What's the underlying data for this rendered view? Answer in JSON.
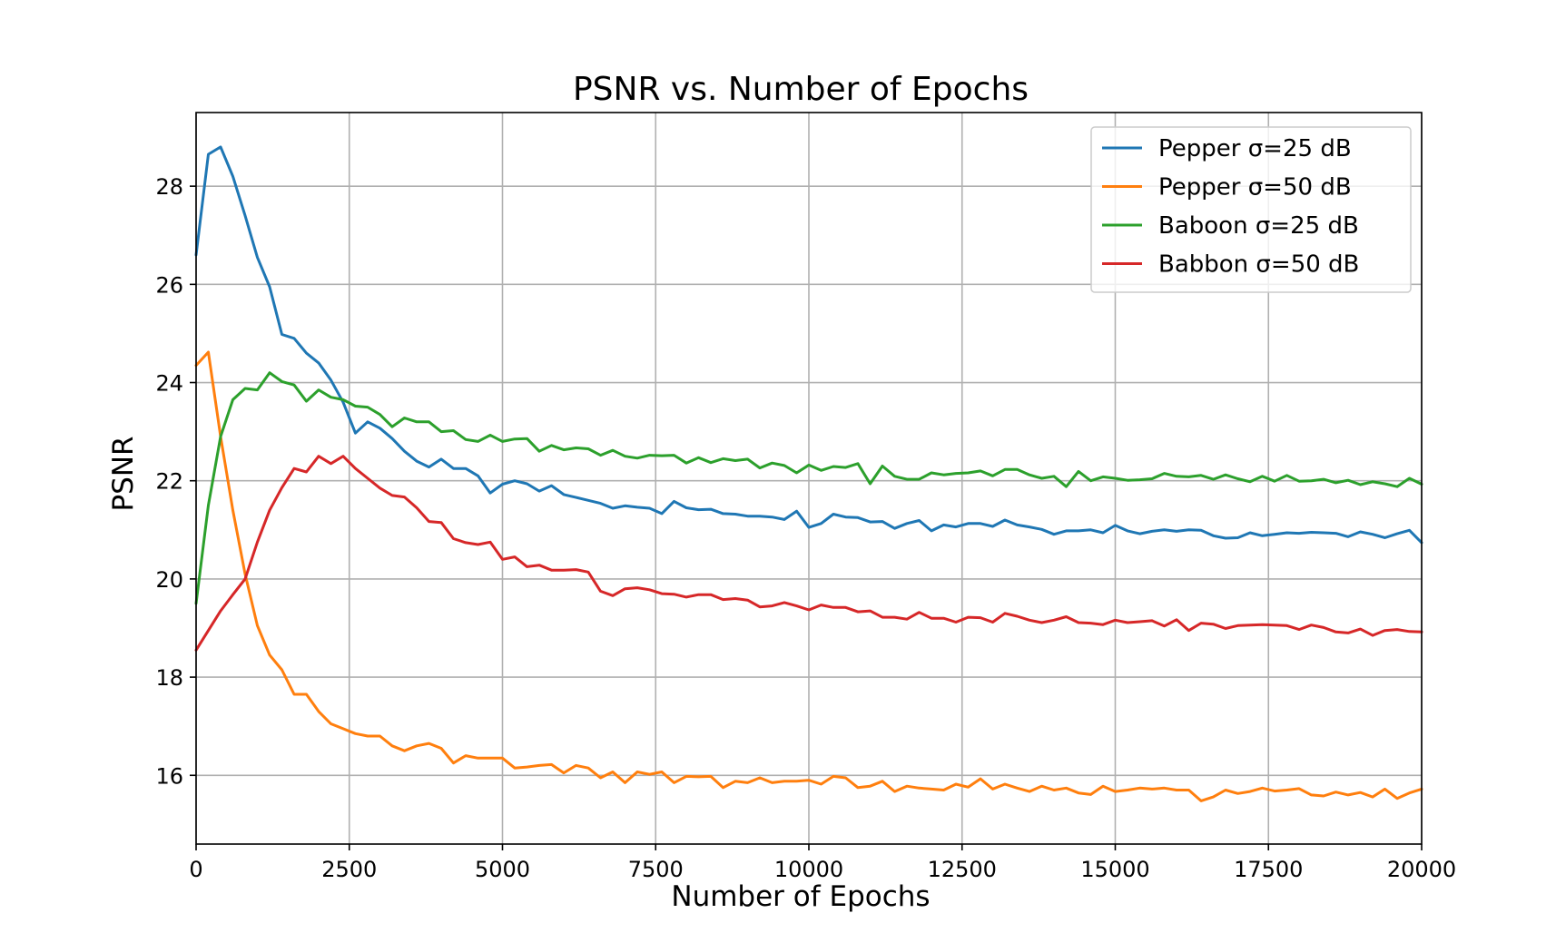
{
  "chart_data": {
    "type": "line",
    "title": "PSNR vs. Number of Epochs",
    "xlabel": "Number of Epochs",
    "ylabel": "PSNR",
    "xlim": [
      0,
      20000
    ],
    "ylim": [
      14.6,
      29.5
    ],
    "grid": true,
    "legend_position": "top-right",
    "x_ticks": [
      0,
      2500,
      5000,
      7500,
      10000,
      12500,
      15000,
      17500,
      20000
    ],
    "x_tick_labels": [
      "0",
      "2500",
      "5000",
      "7500",
      "10000",
      "12500",
      "15000",
      "17500",
      "20000"
    ],
    "y_ticks": [
      16,
      18,
      20,
      22,
      24,
      26,
      28
    ],
    "y_tick_labels": [
      "16",
      "18",
      "20",
      "22",
      "24",
      "26",
      "28"
    ],
    "x": [
      0,
      200,
      400,
      600,
      800,
      1000,
      1200,
      1400,
      1600,
      1800,
      2000,
      2200,
      2400,
      2600,
      2800,
      3000,
      3200,
      3400,
      3600,
      3800,
      4000,
      4200,
      4400,
      4600,
      4800,
      5000,
      5200,
      5400,
      5600,
      5800,
      6000,
      6200,
      6400,
      6600,
      6800,
      7000,
      7200,
      7400,
      7600,
      7800,
      8000,
      8200,
      8400,
      8600,
      8800,
      9000,
      9200,
      9400,
      9600,
      9800,
      10000,
      10200,
      10400,
      10600,
      10800,
      11000,
      11200,
      11400,
      11600,
      11800,
      12000,
      12200,
      12400,
      12600,
      12800,
      13000,
      13200,
      13400,
      13600,
      13800,
      14000,
      14200,
      14400,
      14600,
      14800,
      15000,
      15200,
      15400,
      15600,
      15800,
      16000,
      16200,
      16400,
      16600,
      16800,
      17000,
      17200,
      17400,
      17600,
      17800,
      18000,
      18200,
      18400,
      18600,
      18800,
      19000,
      19200,
      19400,
      19600,
      19800,
      20000
    ],
    "series": [
      {
        "name": "Pepper σ=25 dB",
        "color": "#1f77b4",
        "values": [
          26.6,
          28.65,
          28.8,
          28.2,
          27.4,
          26.55,
          25.95,
          24.98,
          24.9,
          24.6,
          24.4,
          24.05,
          23.6,
          22.97,
          23.2,
          23.07,
          22.86,
          22.6,
          22.4,
          22.28,
          22.44,
          22.25,
          22.25,
          22.1,
          21.75,
          21.93,
          22.0,
          21.94,
          21.79,
          21.9,
          21.72,
          21.66,
          21.6,
          21.54,
          21.44,
          21.49,
          21.46,
          21.44,
          21.33,
          21.58,
          21.45,
          21.41,
          21.42,
          21.33,
          21.32,
          21.28,
          21.28,
          21.26,
          21.21,
          21.38,
          21.05,
          21.13,
          21.32,
          21.26,
          21.25,
          21.16,
          21.17,
          21.03,
          21.13,
          21.19,
          20.98,
          21.1,
          21.06,
          21.13,
          21.13,
          21.07,
          21.2,
          21.1,
          21.06,
          21.01,
          20.91,
          20.98,
          20.98,
          21.0,
          20.94,
          21.09,
          20.98,
          20.92,
          20.97,
          21.0,
          20.97,
          21.0,
          20.99,
          20.88,
          20.83,
          20.84,
          20.94,
          20.88,
          20.91,
          20.94,
          20.93,
          20.95,
          20.94,
          20.93,
          20.86,
          20.96,
          20.91,
          20.84,
          20.92,
          20.99,
          20.74
        ]
      },
      {
        "name": "Pepper σ=50 dB",
        "color": "#ff7f0e",
        "values": [
          24.35,
          24.62,
          22.9,
          21.4,
          20.1,
          19.05,
          18.45,
          18.15,
          17.65,
          17.65,
          17.3,
          17.05,
          16.95,
          16.85,
          16.8,
          16.8,
          16.6,
          16.5,
          16.6,
          16.65,
          16.55,
          16.25,
          16.4,
          16.35,
          16.35,
          16.35,
          16.15,
          16.17,
          16.2,
          16.22,
          16.05,
          16.2,
          16.15,
          15.95,
          16.07,
          15.85,
          16.07,
          16.02,
          16.07,
          15.85,
          15.98,
          15.97,
          15.98,
          15.75,
          15.88,
          15.85,
          15.95,
          15.85,
          15.88,
          15.88,
          15.9,
          15.82,
          15.98,
          15.95,
          15.75,
          15.78,
          15.88,
          15.67,
          15.78,
          15.74,
          15.72,
          15.7,
          15.82,
          15.76,
          15.93,
          15.72,
          15.82,
          15.74,
          15.67,
          15.78,
          15.7,
          15.74,
          15.64,
          15.61,
          15.78,
          15.67,
          15.7,
          15.74,
          15.72,
          15.74,
          15.7,
          15.7,
          15.48,
          15.56,
          15.7,
          15.63,
          15.67,
          15.74,
          15.68,
          15.7,
          15.73,
          15.6,
          15.58,
          15.66,
          15.6,
          15.65,
          15.56,
          15.72,
          15.53,
          15.64,
          15.72
        ]
      },
      {
        "name": "Baboon σ=25 dB",
        "color": "#2ca02c",
        "values": [
          19.5,
          21.5,
          22.9,
          23.65,
          23.88,
          23.85,
          24.2,
          24.02,
          23.95,
          23.62,
          23.85,
          23.7,
          23.65,
          23.52,
          23.5,
          23.35,
          23.1,
          23.28,
          23.2,
          23.2,
          23.0,
          23.02,
          22.84,
          22.8,
          22.93,
          22.8,
          22.85,
          22.86,
          22.6,
          22.72,
          22.63,
          22.67,
          22.65,
          22.52,
          22.62,
          22.5,
          22.46,
          22.52,
          22.51,
          22.52,
          22.36,
          22.47,
          22.37,
          22.45,
          22.41,
          22.44,
          22.26,
          22.36,
          22.31,
          22.16,
          22.32,
          22.21,
          22.29,
          22.27,
          22.35,
          21.94,
          22.3,
          22.09,
          22.03,
          22.03,
          22.16,
          22.12,
          22.15,
          22.16,
          22.2,
          22.1,
          22.23,
          22.23,
          22.12,
          22.05,
          22.09,
          21.88,
          22.19,
          22.0,
          22.08,
          22.05,
          22.01,
          22.02,
          22.04,
          22.15,
          22.09,
          22.08,
          22.11,
          22.03,
          22.12,
          22.04,
          21.98,
          22.09,
          21.99,
          22.11,
          21.99,
          22.0,
          22.03,
          21.96,
          22.01,
          21.92,
          21.98,
          21.94,
          21.88,
          22.05,
          21.93
        ]
      },
      {
        "name": "Babbon σ=50 dB",
        "color": "#d62728",
        "values": [
          18.55,
          18.95,
          19.35,
          19.68,
          20.0,
          20.75,
          21.4,
          21.86,
          22.25,
          22.18,
          22.5,
          22.35,
          22.5,
          22.25,
          22.05,
          21.85,
          21.7,
          21.67,
          21.45,
          21.17,
          21.15,
          20.82,
          20.74,
          20.7,
          20.75,
          20.4,
          20.45,
          20.25,
          20.28,
          20.18,
          20.18,
          20.19,
          20.14,
          19.75,
          19.66,
          19.8,
          19.82,
          19.78,
          19.7,
          19.69,
          19.63,
          19.68,
          19.68,
          19.58,
          19.6,
          19.57,
          19.43,
          19.45,
          19.52,
          19.45,
          19.37,
          19.47,
          19.42,
          19.42,
          19.33,
          19.35,
          19.22,
          19.22,
          19.18,
          19.32,
          19.2,
          19.2,
          19.12,
          19.22,
          19.21,
          19.12,
          19.3,
          19.24,
          19.16,
          19.11,
          19.16,
          19.23,
          19.11,
          19.1,
          19.07,
          19.16,
          19.11,
          19.13,
          19.15,
          19.04,
          19.17,
          18.95,
          19.1,
          19.08,
          18.99,
          19.05,
          19.06,
          19.07,
          19.06,
          19.05,
          18.97,
          19.06,
          19.01,
          18.92,
          18.9,
          18.98,
          18.85,
          18.95,
          18.97,
          18.93,
          18.92
        ]
      }
    ]
  }
}
